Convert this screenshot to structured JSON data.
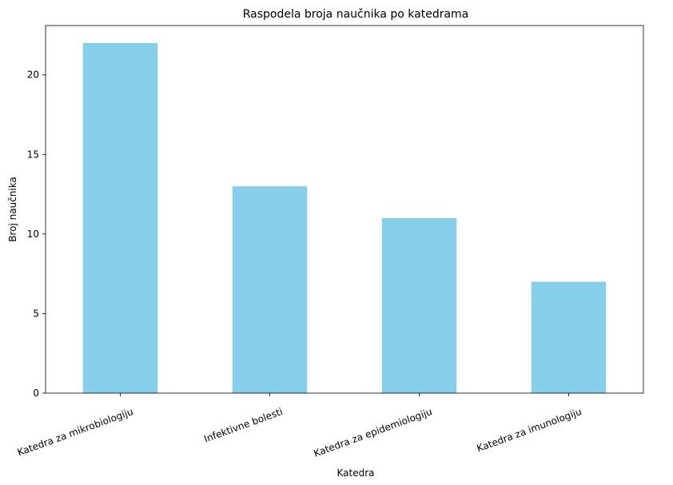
{
  "chart_data": {
    "type": "bar",
    "title": "Raspodela broja naučnika po katedrama",
    "xlabel": "Katedra",
    "ylabel": "Broj naučnika",
    "categories": [
      "Katedra za mikrobiologiju",
      "Infektivne bolesti",
      "Katedra za epidemiologiju",
      "Katedra za imunologiju"
    ],
    "values": [
      22,
      13,
      11,
      7
    ],
    "ylim": [
      0,
      23.1
    ],
    "yticks": [
      0,
      5,
      10,
      15,
      20
    ],
    "grid": false,
    "legend": "none",
    "bar_color": "#87ceeb"
  }
}
